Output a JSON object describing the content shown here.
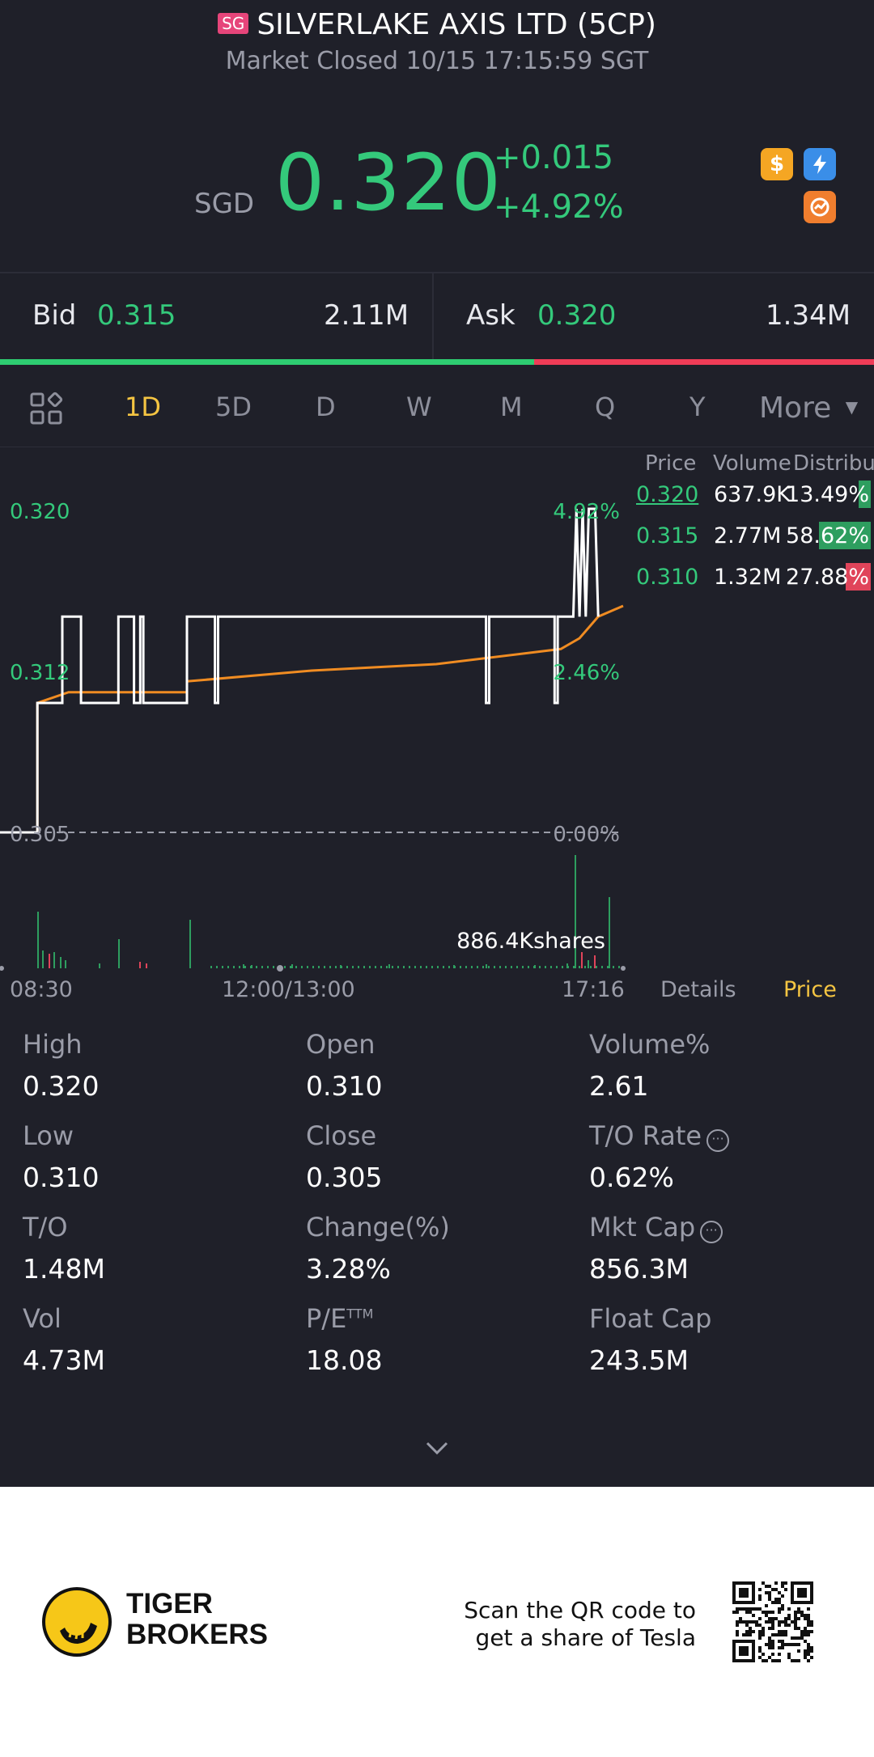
{
  "header": {
    "market_badge": "SG",
    "title": "SILVERLAKE AXIS LTD (5CP)",
    "status": "Market Closed 10/15 17:15:59 SGT"
  },
  "quote": {
    "currency": "SGD",
    "price": "0.320",
    "change": "+0.015",
    "change_pct": "+4.92%"
  },
  "icons": [
    "dollar-icon",
    "lightning-icon",
    "cycle-icon"
  ],
  "bid": {
    "label": "Bid",
    "price": "0.315",
    "size": "2.11M"
  },
  "ask": {
    "label": "Ask",
    "price": "0.320",
    "size": "1.34M"
  },
  "tabs": {
    "items": [
      "1D",
      "5D",
      "D",
      "W",
      "M",
      "Q",
      "Y"
    ],
    "active": "1D",
    "more_label": "More"
  },
  "chart": {
    "y_labels": [
      "0.320",
      "0.312",
      "0.305"
    ],
    "pct_labels": [
      "4.92%",
      "2.46%",
      "0.00%"
    ],
    "volume_label": "886.4Kshares",
    "x_labels": [
      "08:30",
      "12:00/13:00",
      "17:16"
    ]
  },
  "chart_data": {
    "type": "line",
    "series": [
      {
        "values": [
          [
            0,
            0.305
          ],
          [
            0.06,
            0.305
          ],
          [
            0.06,
            0.311
          ],
          [
            0.1,
            0.311
          ],
          [
            0.1,
            0.315
          ],
          [
            0.13,
            0.315
          ],
          [
            0.13,
            0.311
          ],
          [
            0.19,
            0.311
          ],
          [
            0.19,
            0.315
          ],
          [
            0.215,
            0.315
          ],
          [
            0.215,
            0.311
          ],
          [
            0.225,
            0.311
          ],
          [
            0.225,
            0.315
          ],
          [
            0.23,
            0.315
          ],
          [
            0.23,
            0.311
          ],
          [
            0.3,
            0.311
          ],
          [
            0.3,
            0.315
          ],
          [
            0.345,
            0.315
          ],
          [
            0.345,
            0.311
          ],
          [
            0.35,
            0.311
          ],
          [
            0.35,
            0.315
          ],
          [
            0.78,
            0.315
          ],
          [
            0.78,
            0.311
          ],
          [
            0.785,
            0.311
          ],
          [
            0.785,
            0.315
          ],
          [
            0.89,
            0.315
          ],
          [
            0.89,
            0.311
          ],
          [
            0.895,
            0.311
          ],
          [
            0.895,
            0.315
          ],
          [
            0.92,
            0.315
          ],
          [
            0.925,
            0.32
          ],
          [
            0.93,
            0.315
          ],
          [
            0.935,
            0.32
          ],
          [
            0.94,
            0.315
          ],
          [
            0.945,
            0.32
          ],
          [
            0.955,
            0.32
          ],
          [
            0.96,
            0.315
          ]
        ]
      },
      {
        "values": [
          [
            0,
            0.305
          ],
          [
            0.06,
            0.305
          ],
          [
            0.06,
            0.311
          ],
          [
            0.11,
            0.3115
          ],
          [
            0.3,
            0.3115
          ],
          [
            0.3,
            0.312
          ],
          [
            0.5,
            0.3125
          ],
          [
            0.7,
            0.3128
          ],
          [
            0.9,
            0.3135
          ],
          [
            0.93,
            0.314
          ],
          [
            0.96,
            0.315
          ],
          [
            1.0,
            0.3155
          ]
        ]
      }
    ],
    "ylim": [
      0.305,
      0.32
    ],
    "reference_price": 0.305,
    "x_tick_labels": [
      "08:30",
      "12:00/13:00",
      "17:16"
    ],
    "y_tick_labels": [
      "0.320",
      "0.312",
      "0.305"
    ],
    "pct_tick_labels": [
      "4.92%",
      "2.46%",
      "0.00%"
    ]
  },
  "distribution": {
    "headers": [
      "Price",
      "Volume",
      "Distribu"
    ],
    "rows": [
      {
        "price": "0.320",
        "volume": "637.9K",
        "pct": "13.49%",
        "fill": 0.1349,
        "color": "#2e9e5f"
      },
      {
        "price": "0.315",
        "volume": "2.77M",
        "pct": "58.62%",
        "fill": 0.5862,
        "color": "#2e9e5f"
      },
      {
        "price": "0.310",
        "volume": "1.32M",
        "pct": "27.88%",
        "fill": 0.2788,
        "color": "#e0445a"
      }
    ]
  },
  "chart_tabs": {
    "details": "Details",
    "price": "Price"
  },
  "stats": [
    {
      "label": "High",
      "value": "0.320"
    },
    {
      "label": "Open",
      "value": "0.310"
    },
    {
      "label": "Volume%",
      "value": "2.61"
    },
    {
      "label": "Low",
      "value": "0.310"
    },
    {
      "label": "Close",
      "value": "0.305"
    },
    {
      "label": "T/O Rate",
      "value": "0.62%"
    },
    {
      "label": "T/O",
      "value": "1.48M"
    },
    {
      "label": "Change(%)",
      "value": "3.28%"
    },
    {
      "label": "Mkt Cap",
      "value": "856.3M"
    },
    {
      "label": "Vol",
      "value": "4.73M"
    },
    {
      "label": "P/E",
      "sup": "TTM",
      "value": "18.08"
    },
    {
      "label": "Float Cap",
      "value": "243.5M"
    }
  ],
  "footer": {
    "brand_line1": "TIGER",
    "brand_line2": "BROKERS",
    "scan_line1": "Scan the QR code to",
    "scan_line2": "get a share of Tesla"
  }
}
